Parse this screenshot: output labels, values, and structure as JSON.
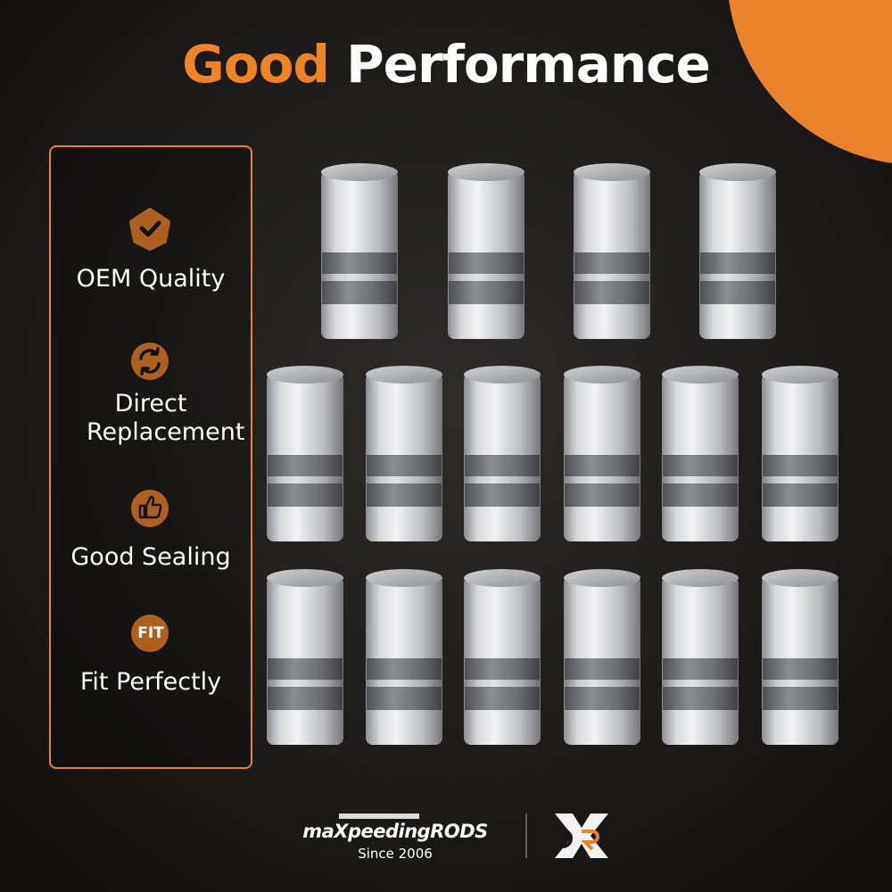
{
  "header": {
    "title_highlight": "Good",
    "title_rest": "Performance"
  },
  "features": [
    {
      "label": "OEM Quality"
    },
    {
      "label": "Direct Replacement"
    },
    {
      "label": "Good Sealing"
    },
    {
      "label": "Fit Perfectly"
    }
  ],
  "fit_icon": "FIT",
  "footer": {
    "brand": "maXpeedingRODS",
    "since": "Since 2006"
  }
}
